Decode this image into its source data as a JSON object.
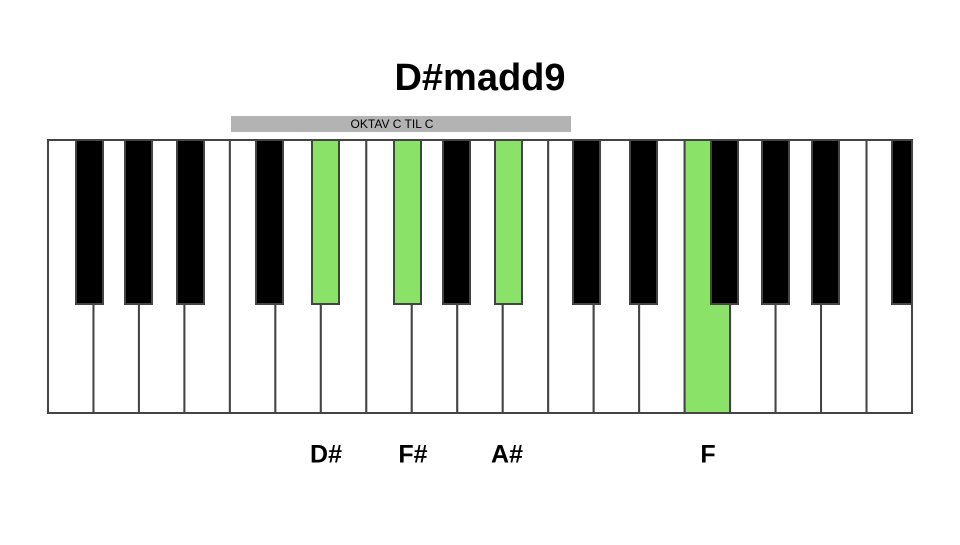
{
  "header": {
    "title": "D#madd9"
  },
  "octave_bar": {
    "label": "OKTAV C TIL C"
  },
  "notes": [
    {
      "label": "D#"
    },
    {
      "label": "F#"
    },
    {
      "label": "A#"
    },
    {
      "label": "F"
    }
  ]
}
